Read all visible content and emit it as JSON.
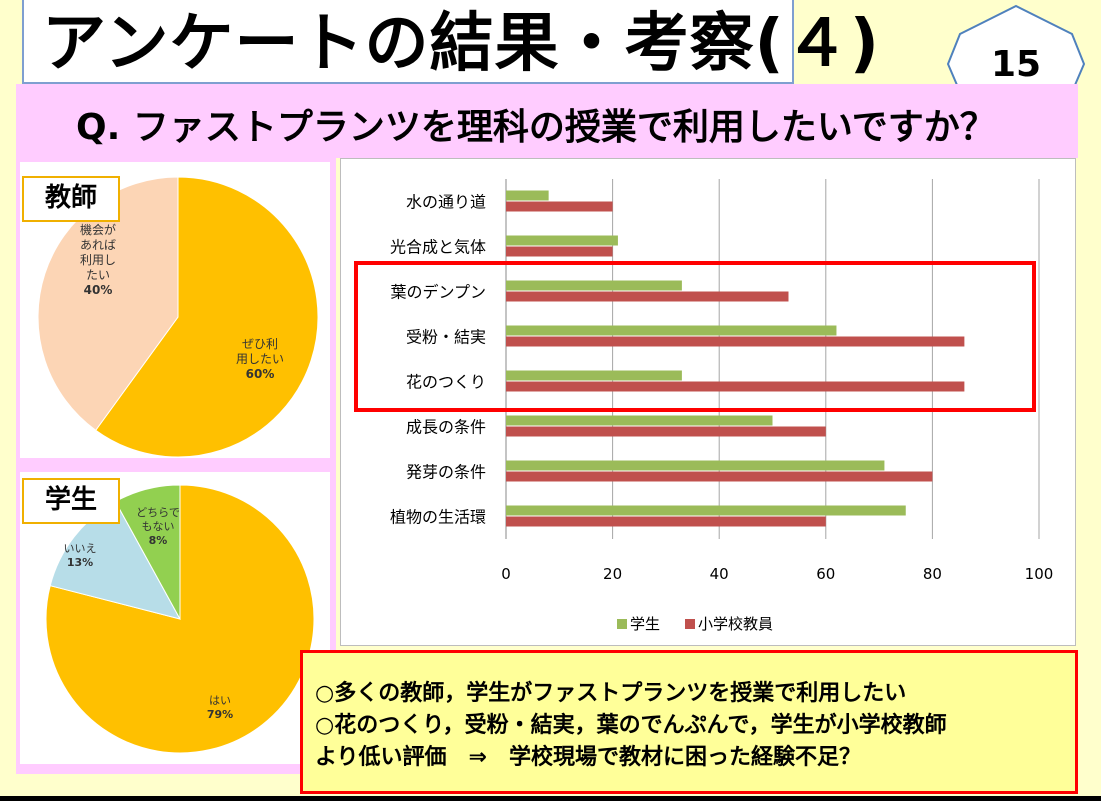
{
  "slide": {
    "title": "アンケートの結果・考察(４)",
    "page_number": "15",
    "question": "Q.  ファストプランツを理科の授業で利用したいですか？"
  },
  "teacher_pie": {
    "label": "教師",
    "slices": [
      {
        "name": "ぜひ利用したい",
        "lines": [
          "ぜひ利",
          "用したい",
          "60%"
        ],
        "value": 60,
        "color": "#ffc000"
      },
      {
        "name": "機会があれば利用したい",
        "lines": [
          "機会が",
          "あれば",
          "利用し",
          "たい",
          "40%"
        ],
        "value": 40,
        "color": "#fcd5b5"
      }
    ]
  },
  "student_pie": {
    "label": "学生",
    "slices": [
      {
        "name": "はい",
        "lines": [
          "はい",
          "79%"
        ],
        "value": 79,
        "color": "#ffc000"
      },
      {
        "name": "いいえ",
        "lines": [
          "いいえ",
          "13%"
        ],
        "value": 13,
        "color": "#b7dde8"
      },
      {
        "name": "どちらでもない",
        "lines": [
          "どちらで",
          "もない",
          "8%"
        ],
        "value": 8,
        "color": "#92d050"
      }
    ]
  },
  "chart_data": [
    {
      "type": "pie",
      "title": "教師",
      "categories": [
        "ぜひ利用したい",
        "機会があれば利用したい"
      ],
      "values": [
        60,
        40
      ]
    },
    {
      "type": "pie",
      "title": "学生",
      "categories": [
        "はい",
        "いいえ",
        "どちらでもない"
      ],
      "values": [
        79,
        13,
        8
      ]
    },
    {
      "type": "bar",
      "orientation": "horizontal",
      "categories": [
        "水の通り道",
        "光合成と気体",
        "葉のデンプン",
        "受粉・結実",
        "花のつくり",
        "成長の条件",
        "発芽の条件",
        "植物の生活環"
      ],
      "series": [
        {
          "name": "学生",
          "color": "#9bbb59",
          "values": [
            8,
            21,
            33,
            62,
            33,
            50,
            71,
            75
          ]
        },
        {
          "name": "小学校教員",
          "color": "#c0504d",
          "values": [
            20,
            20,
            53,
            86,
            86,
            60,
            80,
            60
          ]
        }
      ],
      "xlim": [
        0,
        100
      ],
      "xticks": [
        0,
        20,
        40,
        60,
        80,
        100
      ],
      "grid": true,
      "legend": "bottom",
      "highlighted_categories": [
        "葉のデンプン",
        "受粉・結実",
        "花のつくり"
      ],
      "highlight_color": "#ff0000"
    }
  ],
  "conclusion": {
    "lines": [
      "○多くの教師，学生がファストプランツを授業で利用したい",
      "○花のつくり，受粉・結実，葉のでんぷんで，学生が小学校教師",
      "より低い評価　⇒　学校現場で教材に困った経験不足？"
    ]
  }
}
